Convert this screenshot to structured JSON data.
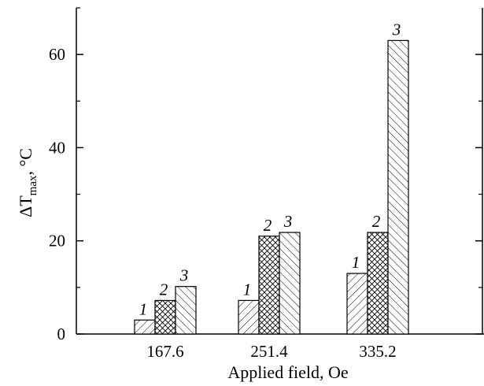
{
  "chart_data": {
    "type": "bar",
    "categories": [
      "167.6",
      "251.4",
      "335.2"
    ],
    "series": [
      {
        "label": "1",
        "values": [
          3,
          7.2,
          13
        ]
      },
      {
        "label": "2",
        "values": [
          7.2,
          21,
          21.8
        ]
      },
      {
        "label": "3",
        "values": [
          10.2,
          21.8,
          63
        ]
      }
    ],
    "xlabel": "Applied field, Oe",
    "ylabel": {
      "main": "ΔT",
      "subscript": "max",
      "suffix": ", °C"
    },
    "ylim": [
      0,
      70
    ],
    "yticks": [
      "0",
      "20",
      "40",
      "60"
    ],
    "grid": false,
    "legend": "none"
  }
}
